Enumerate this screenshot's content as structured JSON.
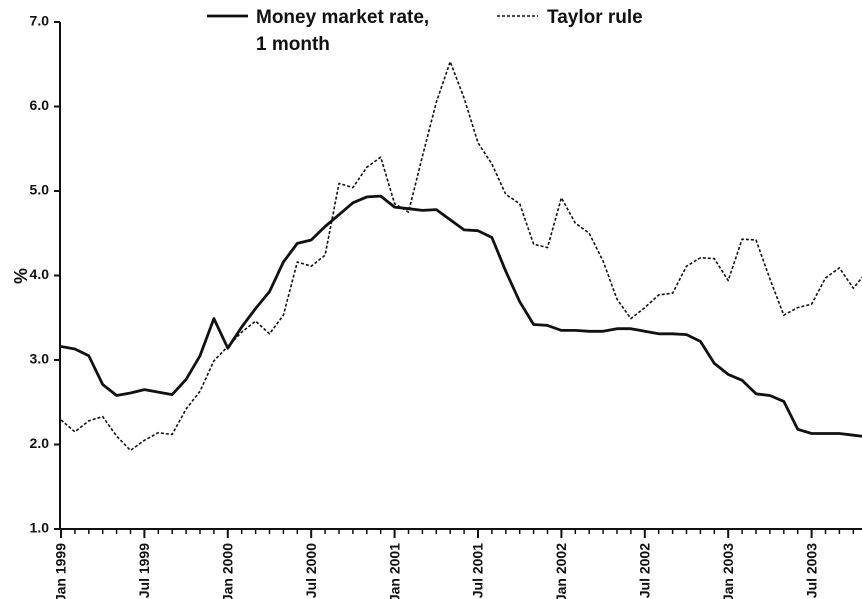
{
  "chart_data": {
    "type": "line",
    "ylabel": "%",
    "xlabel": "",
    "title": "",
    "ylim": [
      1.0,
      7.0
    ],
    "y_ticks": [
      "1.0",
      "2.0",
      "3.0",
      "4.0",
      "5.0",
      "6.0",
      "7.0"
    ],
    "x_tick_labels": [
      "Jan 1999",
      "Jul 1999",
      "Jan 2000",
      "Jul 2000",
      "Jan 2001",
      "Jul 2001",
      "Jan 2002",
      "Jul 2002",
      "Jan 2003",
      "Jul 2003"
    ],
    "x_start": "1999-01",
    "x_end": "2003-10",
    "legend_position": "top",
    "grid": false,
    "series": [
      {
        "name": "Money market rate, 1 month",
        "style": "solid",
        "color": "#111111",
        "values": [
          3.16,
          3.13,
          3.05,
          2.71,
          2.58,
          2.61,
          2.65,
          2.62,
          2.59,
          2.77,
          3.05,
          3.49,
          3.14,
          3.39,
          3.61,
          3.81,
          4.16,
          4.38,
          4.42,
          4.58,
          4.72,
          4.86,
          4.93,
          4.94,
          4.81,
          4.79,
          4.77,
          4.78,
          4.66,
          4.54,
          4.53,
          4.45,
          4.05,
          3.69,
          3.42,
          3.41,
          3.35,
          3.35,
          3.34,
          3.34,
          3.37,
          3.37,
          3.34,
          3.31,
          3.31,
          3.3,
          3.22,
          2.96,
          2.83,
          2.76,
          2.6,
          2.58,
          2.51,
          2.18,
          2.13,
          2.13,
          2.13,
          2.11,
          2.09
        ]
      },
      {
        "name": "Taylor rule",
        "style": "dashed",
        "color": "#111111",
        "values": [
          2.29,
          2.15,
          2.28,
          2.33,
          2.1,
          1.93,
          2.05,
          2.14,
          2.12,
          2.42,
          2.63,
          2.99,
          3.16,
          3.33,
          3.46,
          3.31,
          3.53,
          4.16,
          4.11,
          4.24,
          5.09,
          5.04,
          5.28,
          5.4,
          4.85,
          4.75,
          5.41,
          6.05,
          6.53,
          6.1,
          5.57,
          5.32,
          4.96,
          4.85,
          4.37,
          4.33,
          4.92,
          4.62,
          4.5,
          4.17,
          3.72,
          3.49,
          3.62,
          3.77,
          3.79,
          4.11,
          4.21,
          4.2,
          3.94,
          4.43,
          4.42,
          3.96,
          3.53,
          3.62,
          3.66,
          3.97,
          4.09,
          3.85,
          4.05
        ]
      }
    ]
  }
}
